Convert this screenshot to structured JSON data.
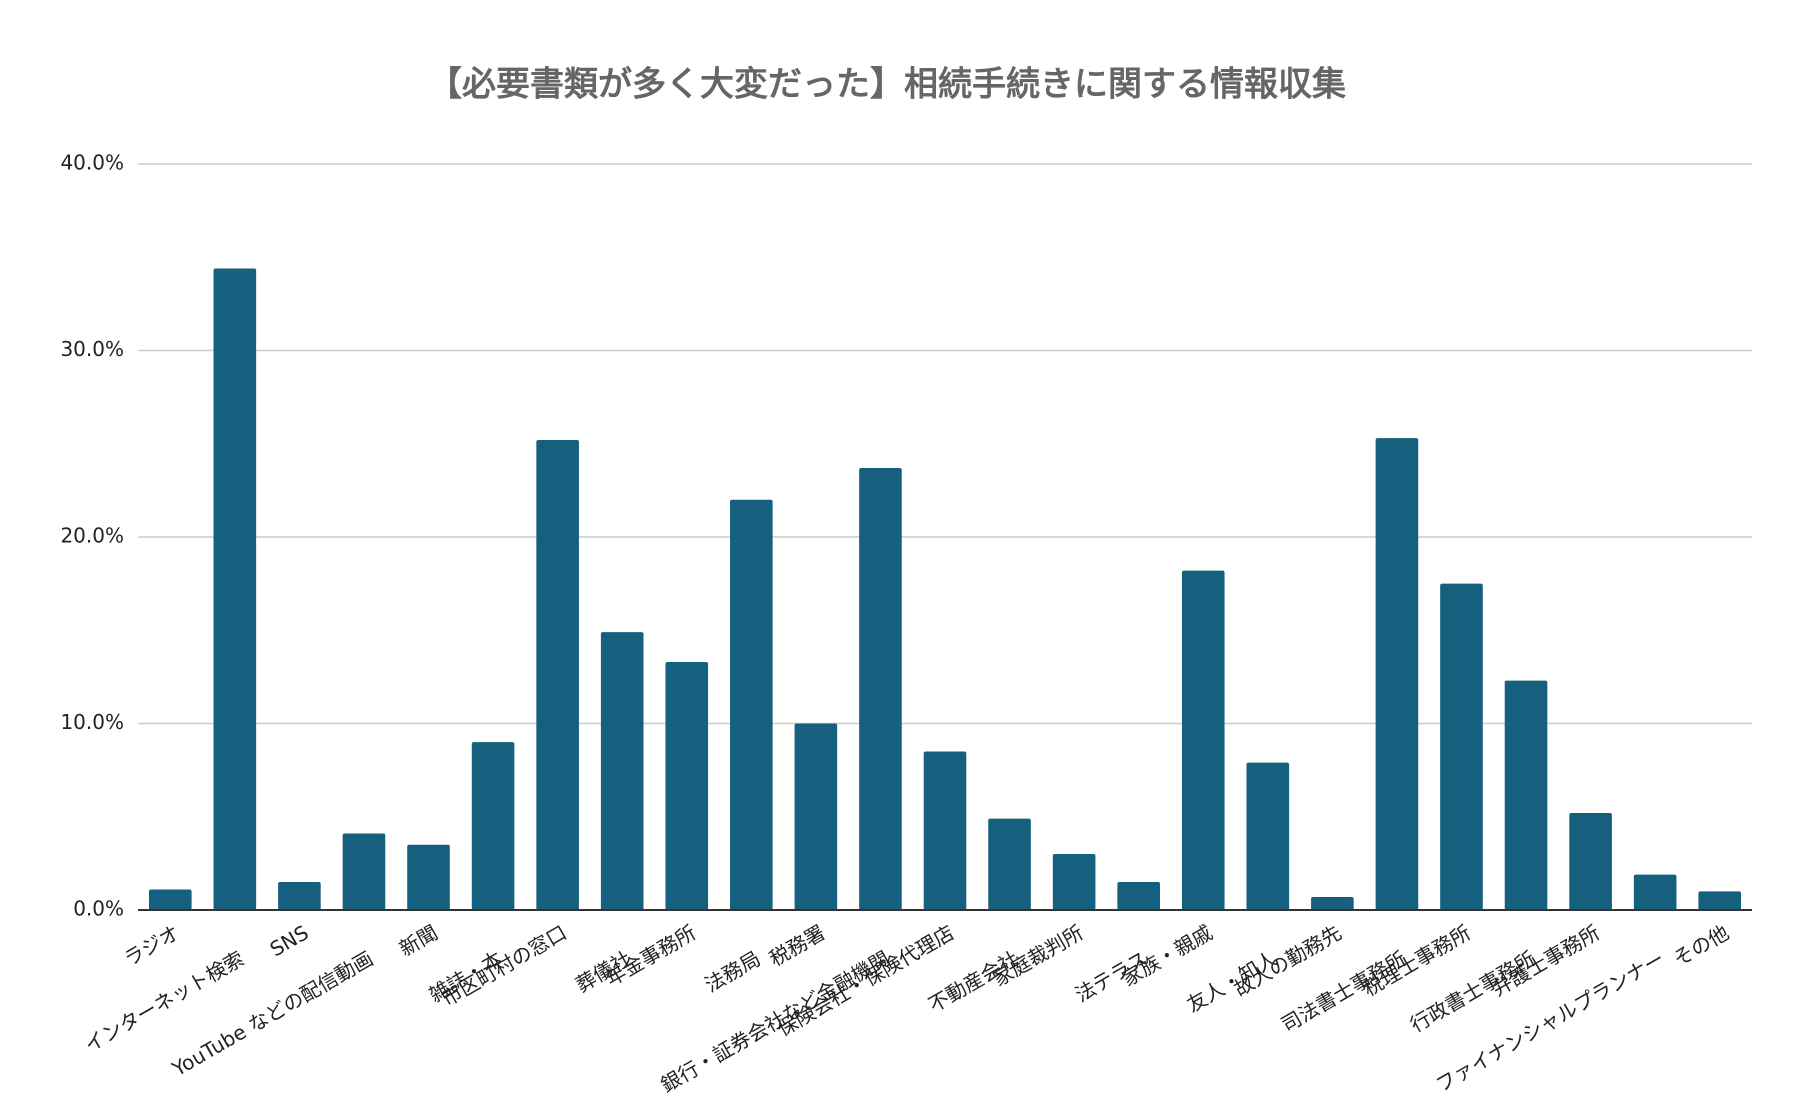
{
  "chart_data": {
    "type": "bar",
    "title": "【必要書類が多く大変だった】相続手続きに関する情報収集",
    "categories": [
      "ラジオ",
      "インターネット検索",
      "SNS",
      "YouTube などの配信動画",
      "新聞",
      "雑誌・本",
      "市区町村の窓口",
      "葬儀社",
      "年金事務所",
      "法務局",
      "税務署",
      "銀行・証券会社など金融機関",
      "保険会社・保険代理店",
      "不動産会社",
      "家庭裁判所",
      "法テラス",
      "家族・親戚",
      "友人・知人",
      "故人の勤務先",
      "司法書士事務所",
      "税理士事務所",
      "行政書士事務所",
      "弁護士事務所",
      "ファイナンシャルプランナー",
      "その他"
    ],
    "values": [
      1.1,
      34.4,
      1.5,
      4.1,
      3.5,
      9.0,
      25.2,
      14.9,
      13.3,
      22.0,
      10.0,
      23.7,
      8.5,
      4.9,
      3.0,
      1.5,
      18.2,
      7.9,
      0.7,
      25.3,
      17.5,
      12.3,
      5.2,
      1.9,
      1.0
    ],
    "color": "#16607f",
    "ylim": [
      0,
      40
    ],
    "yticks": [
      {
        "value": 0,
        "label": "0.0%"
      },
      {
        "value": 10,
        "label": "10.0%"
      },
      {
        "value": 20,
        "label": "20.0%"
      },
      {
        "value": 30,
        "label": "30.0%"
      },
      {
        "value": 40,
        "label": "40.0%"
      }
    ],
    "grid": true
  }
}
